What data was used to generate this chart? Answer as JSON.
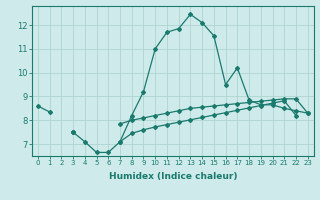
{
  "xlabel": "Humidex (Indice chaleur)",
  "bg_color": "#ceeaea",
  "line_color": "#1a7a6e",
  "grid_color": "#aed4ce",
  "x": [
    0,
    1,
    2,
    3,
    4,
    5,
    6,
    7,
    8,
    9,
    10,
    11,
    12,
    13,
    14,
    15,
    16,
    17,
    18,
    19,
    20,
    21,
    22,
    23
  ],
  "line1": [
    8.6,
    8.35,
    null,
    null,
    null,
    null,
    null,
    null,
    null,
    null,
    null,
    null,
    null,
    null,
    null,
    null,
    null,
    null,
    null,
    null,
    null,
    null,
    null,
    null
  ],
  "line2_main": [
    8.6,
    8.35,
    null,
    7.5,
    7.1,
    6.65,
    6.65,
    7.1,
    8.2,
    9.2,
    11.0,
    11.7,
    11.85,
    12.45,
    12.1,
    11.55,
    9.5,
    10.2,
    8.85,
    8.65,
    8.65,
    8.5,
    8.4,
    8.3
  ],
  "line3_upper": [
    null,
    null,
    null,
    7.5,
    null,
    null,
    null,
    7.85,
    8.0,
    8.1,
    8.2,
    8.3,
    8.4,
    8.5,
    8.55,
    8.6,
    8.65,
    8.7,
    8.75,
    8.8,
    8.85,
    8.9,
    8.9,
    8.3
  ],
  "line4_lower": [
    null,
    null,
    null,
    7.5,
    null,
    null,
    null,
    7.1,
    7.45,
    7.6,
    7.72,
    7.82,
    7.92,
    8.02,
    8.12,
    8.22,
    8.32,
    8.42,
    8.52,
    8.62,
    8.72,
    8.82,
    8.2,
    null
  ],
  "ylim": [
    6.5,
    12.8
  ],
  "xlim": [
    -0.5,
    23.5
  ],
  "yticks": [
    7,
    8,
    9,
    10,
    11,
    12
  ],
  "xticks": [
    0,
    1,
    2,
    3,
    4,
    5,
    6,
    7,
    8,
    9,
    10,
    11,
    12,
    13,
    14,
    15,
    16,
    17,
    18,
    19,
    20,
    21,
    22,
    23
  ]
}
